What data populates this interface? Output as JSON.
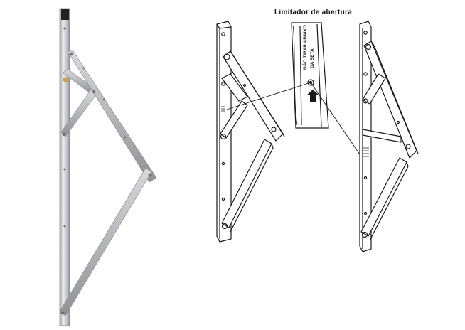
{
  "caption": "Limitador de abertura",
  "detail_engraving": {
    "line1": "NÃO TIRAR ABAIXO",
    "line2": "DA SETA"
  },
  "colors": {
    "metal_light": "#e2e2e4",
    "metal_mid": "#b7b9bd",
    "metal_dark": "#8a8c90",
    "line_art": "#1a1a1a",
    "background": "#ffffff"
  }
}
